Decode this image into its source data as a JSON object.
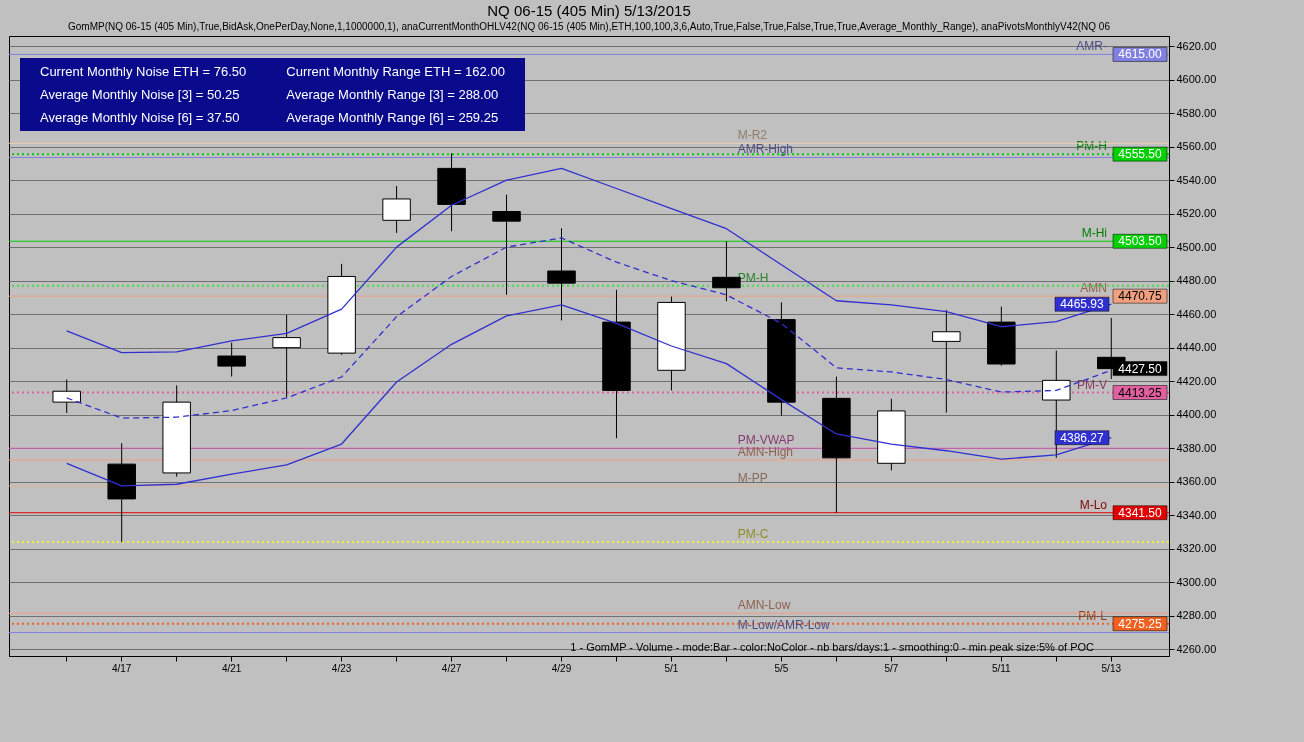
{
  "chart_data": {
    "type": "candlestick",
    "title": "NQ 06-15 (405 Min)  5/13/2015",
    "subtitle": "GomMP(NQ 06-15 (405 Min),True,BidAsk,OnePerDay,None,1,1000000,1), anaCurrentMonthOHLV42(NQ 06-15 (405 Min),ETH,100,100,3,6,Auto,True,False,True,False,True,True,Average_Monthly_Range), anaPivotsMonthlyV42(NQ 06",
    "categories": [
      null,
      "4/17",
      null,
      "4/21",
      null,
      "4/23",
      null,
      "4/27",
      null,
      "4/29",
      null,
      "5/1",
      null,
      "5/5",
      null,
      "5/7",
      null,
      "5/11",
      null,
      "5/13"
    ],
    "ohlc": [
      [
        4407.5,
        4421,
        4401,
        4414
      ],
      [
        4370.5,
        4383,
        4324,
        4349.75
      ],
      [
        4365.25,
        4417.5,
        4363,
        4407.5
      ],
      [
        4435,
        4443,
        4422.75,
        4429
      ],
      [
        4440,
        4459.5,
        4410.5,
        4446
      ],
      [
        4436.75,
        4490,
        4435.75,
        4482.5
      ],
      [
        4516,
        4536.5,
        4508.5,
        4528.75
      ],
      [
        4547,
        4556,
        4509.5,
        4525.5
      ],
      [
        4521.25,
        4531.25,
        4471.5,
        4515.5
      ],
      [
        4485.75,
        4511.25,
        4456.25,
        4478.5
      ],
      [
        4455.25,
        4474.5,
        4386,
        4414.5
      ],
      [
        4426.5,
        4470.5,
        4414.5,
        4467
      ],
      [
        4482,
        4503.5,
        4467.75,
        4475.75
      ],
      [
        4456.75,
        4467,
        4399.5,
        4407.5
      ],
      [
        4409.75,
        4422.75,
        4341.5,
        4374.25
      ],
      [
        4371,
        4409.5,
        4366.75,
        4402.25
      ],
      [
        4443.75,
        4462.5,
        4401.25,
        4449.5
      ],
      [
        4455.25,
        4464.5,
        4429.25,
        4430.25
      ],
      [
        4408.75,
        4438.25,
        4374.25,
        4420.5
      ],
      [
        4434.25,
        4457.75,
        4421.25,
        4427.5
      ]
    ],
    "series": [
      {
        "type": "line",
        "color": "#3030d0",
        "line_style": "solid",
        "values": [
          4450,
          4437,
          4437.5,
          4444,
          4448.5,
          4463,
          4500,
          4525,
          4540,
          4547,
          4535,
          4523,
          4511,
          4489.5,
          4468,
          4465.5,
          4461.5,
          4452.5,
          4455.5,
          4465.93
        ],
        "value_labels": [
          null,
          null,
          null,
          null,
          null,
          null,
          null,
          null,
          null,
          null,
          null,
          null,
          null,
          null,
          null,
          null,
          null,
          null,
          null,
          "4465.93"
        ]
      },
      {
        "type": "line",
        "color": "#3030d0",
        "line_style": "dashed",
        "values": [
          4410,
          4398,
          4398.5,
          4402.5,
          4410,
          4422.5,
          4458.5,
          4482.5,
          4500,
          4505.5,
          4491,
          4480,
          4471.5,
          4454.5,
          4428,
          4425.5,
          4421,
          4413.5,
          4414.5,
          4426.5
        ]
      },
      {
        "type": "line",
        "color": "#3030d0",
        "line_style": "solid",
        "values": [
          4371,
          4357.5,
          4358.5,
          4364.5,
          4370,
          4382.5,
          4419.5,
          4442,
          4459,
          4465.5,
          4454.5,
          4441,
          4430.5,
          4409,
          4388.5,
          4382.5,
          4378.5,
          4373.5,
          4376,
          4386.27
        ],
        "value_labels": [
          null,
          null,
          null,
          null,
          null,
          null,
          null,
          null,
          null,
          null,
          null,
          null,
          null,
          null,
          null,
          null,
          null,
          null,
          null,
          "4386.27"
        ]
      }
    ],
    "ylim": [
      4256,
      4626
    ],
    "yticks": [
      {
        "value": 4260,
        "label": "4260.00"
      },
      {
        "value": 4280,
        "label": "4280.00"
      },
      {
        "value": 4300,
        "label": "4300.00"
      },
      {
        "value": 4320,
        "label": "4320.00"
      },
      {
        "value": 4340,
        "label": "4340.00"
      },
      {
        "value": 4360,
        "label": "4360.00"
      },
      {
        "value": 4380,
        "label": "4380.00"
      },
      {
        "value": 4400,
        "label": "4400.00"
      },
      {
        "value": 4420,
        "label": "4420.00"
      },
      {
        "value": 4440,
        "label": "4440.00"
      },
      {
        "value": 4460,
        "label": "4460.00"
      },
      {
        "value": 4480,
        "label": "4480.00"
      },
      {
        "value": 4500,
        "label": "4500.00"
      },
      {
        "value": 4520,
        "label": "4520.00"
      },
      {
        "value": 4540,
        "label": "4540.00"
      },
      {
        "value": 4560,
        "label": "4560.00"
      },
      {
        "value": 4580,
        "label": "4580.00"
      },
      {
        "value": 4600,
        "label": "4600.00"
      },
      {
        "value": 4620,
        "label": "4620.00"
      }
    ],
    "grid": "y",
    "ref_lines": [
      {
        "axis": "y",
        "value": 4615,
        "label": "AMR-",
        "color": "#8080e0",
        "line_style": "solid"
      },
      {
        "axis": "y",
        "value": 4555.5,
        "label": "PM-H",
        "color": "#00d000",
        "line_style": "dotted"
      },
      {
        "axis": "y",
        "value": 4503.5,
        "label": "M-Hi",
        "color": "#00d000",
        "line_style": "solid"
      },
      {
        "axis": "y",
        "value": 4470.75,
        "label": "AMN",
        "color": "#f0a080",
        "line_style": "solid"
      },
      {
        "axis": "y",
        "value": 4413.25,
        "label": "PM-V",
        "color": "#e060a0",
        "line_style": "dotted"
      },
      {
        "axis": "y",
        "value": 4341.5,
        "label": "M-Lo",
        "color": "#e00000",
        "line_style": "solid"
      },
      {
        "axis": "y",
        "value": 4275.25,
        "label": "PM-L",
        "color": "#f06020",
        "line_style": "dotted"
      },
      {
        "axis": "y",
        "value": 4562,
        "label": "M-R2",
        "color": "#f0d0b0",
        "line_style": "solid"
      },
      {
        "axis": "y",
        "value": 4553.5,
        "label": "AMR-High",
        "color": "#8080e0",
        "line_style": "solid"
      },
      {
        "axis": "y",
        "value": 4477,
        "label": "PM-H",
        "color": "#40e040",
        "line_style": "dotted"
      },
      {
        "axis": "y",
        "value": 4380,
        "label": "PM-VWAP",
        "color": "#e060c0",
        "line_style": "solid"
      },
      {
        "axis": "y",
        "value": 4373,
        "label": "AMN-High",
        "color": "#f0a080",
        "line_style": "solid"
      },
      {
        "axis": "y",
        "value": 4357.5,
        "label": "M-PP",
        "color": "#e0b090",
        "line_style": "solid"
      },
      {
        "axis": "y",
        "value": 4324,
        "label": "PM-C",
        "color": "#f0f040",
        "line_style": "dotted"
      },
      {
        "axis": "y",
        "value": 4281.5,
        "label": "AMN-Low",
        "color": "#f0a080",
        "line_style": "solid"
      },
      {
        "axis": "y",
        "value": 4270,
        "label": "M-Low/AMR-Low",
        "color": "#8080e0",
        "line_style": "solid"
      }
    ],
    "annotations": [
      "Current Monthly Noise ETH = 76.50",
      "Current Monthly Range ETH = 162.00",
      "Average Monthly Noise [3] = 50.25",
      "Average Monthly Range [3] = 288.00",
      "Average Monthly Noise [6] = 37.50",
      "Average Monthly Range [6] = 259.25",
      {
        "text": "4615.00",
        "y": 4615
      },
      {
        "text": "4555.50",
        "y": 4555.5
      },
      {
        "text": "4503.50",
        "y": 4503.5
      },
      {
        "text": "4470.75",
        "y": 4470.75
      },
      {
        "text": "4427.50",
        "x": "5/13",
        "y": 4427.5
      },
      {
        "text": "4413.25",
        "y": 4413.25
      },
      {
        "text": "4341.50",
        "y": 4341.5
      },
      {
        "text": "4275.25",
        "y": 4275.25
      },
      "1 - GomMP - Volume - mode:Bar - color:NoColor - nb bars/days:1 - smoothing:0 - min peak size:5% of POC"
    ]
  }
}
